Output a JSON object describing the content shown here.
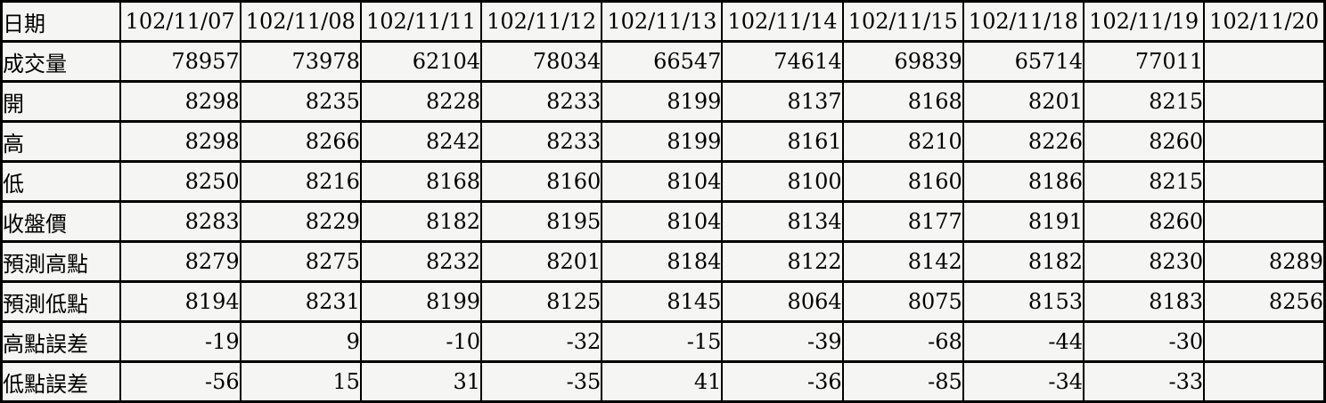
{
  "colors": {
    "table_background": "#f5f5f3",
    "border": "#000000",
    "text": "#000000"
  },
  "chart_data": {
    "type": "table",
    "title": "",
    "columns": [
      "日期",
      "102/11/07",
      "102/11/08",
      "102/11/11",
      "102/11/12",
      "102/11/13",
      "102/11/14",
      "102/11/15",
      "102/11/18",
      "102/11/19",
      "102/11/20"
    ],
    "rows": [
      {
        "label": "成交量",
        "values": [
          "78957",
          "73978",
          "62104",
          "78034",
          "66547",
          "74614",
          "69839",
          "65714",
          "77011",
          ""
        ]
      },
      {
        "label": "開",
        "values": [
          "8298",
          "8235",
          "8228",
          "8233",
          "8199",
          "8137",
          "8168",
          "8201",
          "8215",
          ""
        ]
      },
      {
        "label": "高",
        "values": [
          "8298",
          "8266",
          "8242",
          "8233",
          "8199",
          "8161",
          "8210",
          "8226",
          "8260",
          ""
        ]
      },
      {
        "label": "低",
        "values": [
          "8250",
          "8216",
          "8168",
          "8160",
          "8104",
          "8100",
          "8160",
          "8186",
          "8215",
          ""
        ]
      },
      {
        "label": "收盤價",
        "values": [
          "8283",
          "8229",
          "8182",
          "8195",
          "8104",
          "8134",
          "8177",
          "8191",
          "8260",
          ""
        ]
      },
      {
        "label": "預測高點",
        "values": [
          "8279",
          "8275",
          "8232",
          "8201",
          "8184",
          "8122",
          "8142",
          "8182",
          "8230",
          "8289"
        ]
      },
      {
        "label": "預測低點",
        "values": [
          "8194",
          "8231",
          "8199",
          "8125",
          "8145",
          "8064",
          "8075",
          "8153",
          "8183",
          "8256"
        ]
      },
      {
        "label": "高點誤差",
        "values": [
          "-19",
          "9",
          "-10",
          "-32",
          "-15",
          "-39",
          "-68",
          "-44",
          "-30",
          ""
        ]
      },
      {
        "label": "低點誤差",
        "values": [
          "-56",
          "15",
          "31",
          "-35",
          "41",
          "-36",
          "-85",
          "-34",
          "-33",
          ""
        ]
      }
    ]
  }
}
